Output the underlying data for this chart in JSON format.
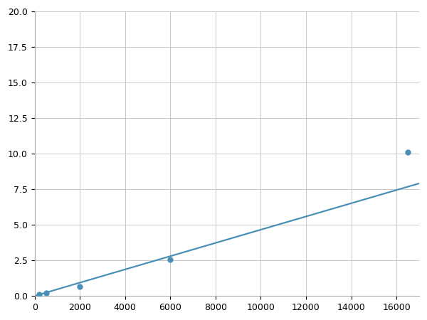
{
  "x": [
    200,
    500,
    2000,
    6000,
    16500
  ],
  "y": [
    0.12,
    0.22,
    0.65,
    2.55,
    10.1
  ],
  "line_color": "#4a8fb5",
  "marker_color": "#4a8fb5",
  "marker_size": 5,
  "xlim": [
    0,
    17000
  ],
  "ylim": [
    0,
    20.0
  ],
  "xticks": [
    0,
    2000,
    4000,
    6000,
    8000,
    10000,
    12000,
    14000,
    16000
  ],
  "yticks": [
    0.0,
    2.5,
    5.0,
    7.5,
    10.0,
    12.5,
    15.0,
    17.5,
    20.0
  ],
  "grid_color": "#c8c8c8",
  "background_color": "#ffffff",
  "fig_background": "#ffffff",
  "linewidth": 1.6
}
